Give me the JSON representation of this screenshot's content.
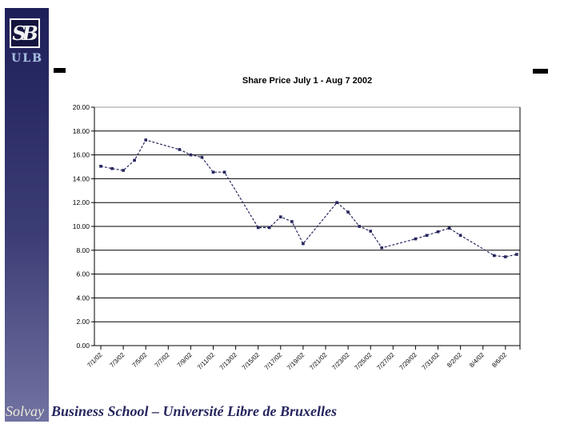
{
  "branding": {
    "monogram": "SB",
    "org": "ULB"
  },
  "footer": {
    "prefix": "Solvay",
    "rest": "Business School – Université Libre de Bruxelles"
  },
  "colors": {
    "series": "#26265e",
    "bar_top": "#1e1f5a",
    "bar_bottom": "#7173a2",
    "ulb_text": "#a6c0e2",
    "footer_solvay": "#efeedb",
    "grid": "#000000",
    "grid_top": "#9a9a9a"
  },
  "chart_data": {
    "type": "line",
    "title": "Share Price July 1 - Aug 7 2002",
    "xlabel": "",
    "ylabel": "",
    "ylim": [
      0,
      20
    ],
    "grid": true,
    "legend": "none",
    "line_style": "dashed",
    "marker": "square",
    "x": [
      "7/1/02",
      "7/2/02",
      "7/3/02",
      "7/4/02",
      "7/5/02",
      "7/8/02",
      "7/9/02",
      "7/10/02",
      "7/11/02",
      "7/12/02",
      "7/15/02",
      "7/16/02",
      "7/17/02",
      "7/18/02",
      "7/19/02",
      "7/22/02",
      "7/23/02",
      "7/24/02",
      "7/25/02",
      "7/26/02",
      "7/29/02",
      "7/30/02",
      "7/31/02",
      "8/1/02",
      "8/2/02",
      "8/5/02",
      "8/6/02",
      "8/7/02"
    ],
    "values": [
      15.05,
      14.85,
      14.7,
      15.55,
      17.25,
      16.45,
      16.0,
      15.8,
      14.55,
      14.55,
      9.9,
      9.9,
      10.8,
      10.4,
      8.55,
      12.0,
      11.2,
      10.0,
      9.6,
      8.2,
      8.95,
      9.25,
      9.55,
      9.85,
      9.25,
      7.55,
      7.45,
      7.65
    ],
    "x_tick_labels": [
      "7/1/02",
      "7/3/02",
      "7/5/02",
      "7/7/02",
      "7/9/02",
      "7/11/02",
      "7/13/02",
      "7/15/02",
      "7/17/02",
      "7/19/02",
      "7/21/02",
      "7/23/02",
      "7/25/02",
      "7/27/02",
      "7/29/02",
      "7/31/02",
      "8/2/02",
      "8/4/02",
      "8/6/02"
    ],
    "y_tick_labels": [
      "20.00",
      "18.00",
      "16.00",
      "14.00",
      "12.00",
      "10.00",
      "8.00",
      "6.00",
      "4.00",
      "2.00",
      "0.00"
    ]
  }
}
